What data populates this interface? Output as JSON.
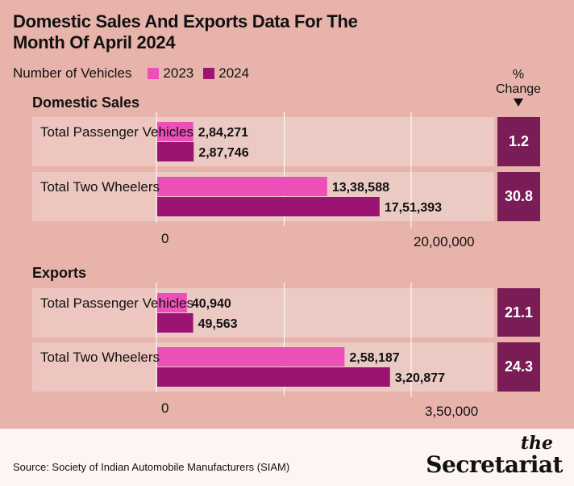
{
  "title": "Domestic Sales And Exports Data For The Month Of April 2024",
  "legend": {
    "label": "Number of Vehicles",
    "items": [
      {
        "name": "2023",
        "color": "#ec4fb8"
      },
      {
        "name": "2024",
        "color": "#9c1472"
      }
    ]
  },
  "change_header": {
    "line1": "%",
    "line2": "Change"
  },
  "chart_data": [
    {
      "type": "bar",
      "title": "Domestic Sales",
      "categories": [
        "Total Passenger Vehicles",
        "Total Two Wheelers"
      ],
      "series": [
        {
          "name": "2023",
          "values": [
            284271,
            1338588
          ],
          "labels": [
            "2,84,271",
            "13,38,588"
          ]
        },
        {
          "name": "2024",
          "values": [
            287746,
            1751393
          ],
          "labels": [
            "2,87,746",
            "17,51,393"
          ]
        }
      ],
      "pct_change": [
        "1.2",
        "30.8"
      ],
      "xlim": [
        0,
        2000000
      ],
      "tick_labels": [
        "0",
        "20,00,000"
      ]
    },
    {
      "type": "bar",
      "title": "Exports",
      "categories": [
        "Total Passenger Vehicles",
        "Total Two Wheelers"
      ],
      "series": [
        {
          "name": "2023",
          "values": [
            40940,
            258187
          ],
          "labels": [
            "40,940",
            "2,58,187"
          ]
        },
        {
          "name": "2024",
          "values": [
            49563,
            320877
          ],
          "labels": [
            "49,563",
            "3,20,877"
          ]
        }
      ],
      "pct_change": [
        "21.1",
        "24.3"
      ],
      "xlim": [
        0,
        350000
      ],
      "tick_labels": [
        "0",
        "3,50,000"
      ]
    }
  ],
  "footer": {
    "source": "Source: Society of Indian Automobile Manufacturers (SIAM)",
    "brand_top": "the",
    "brand_main": "Secretariat"
  }
}
